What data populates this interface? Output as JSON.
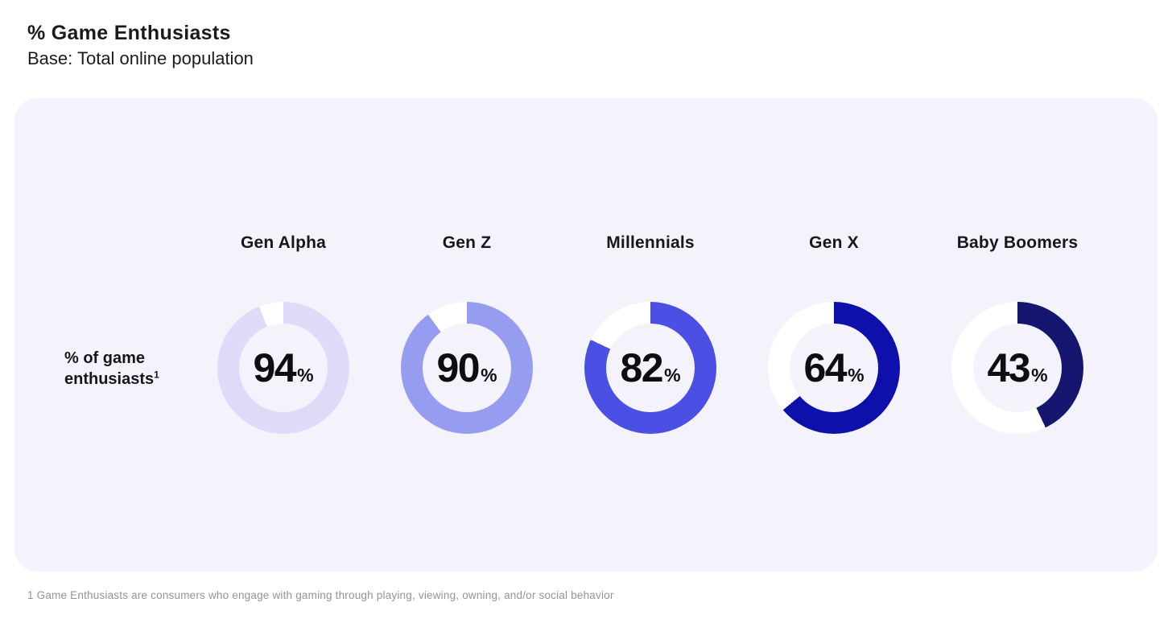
{
  "header": {
    "title": "% Game Enthusiasts",
    "subtitle": "Base: Total online population"
  },
  "chart_data": {
    "type": "donut",
    "title": "% Game Enthusiasts",
    "subtitle": "Base: Total online population",
    "row_label": "% of game enthusiasts",
    "row_label_superscript": "1",
    "categories": [
      "Gen Alpha",
      "Gen Z",
      "Millennials",
      "Gen X",
      "Baby Boomers"
    ],
    "values": [
      94,
      90,
      82,
      64,
      43
    ],
    "unit": "%",
    "value_range": [
      0,
      100
    ],
    "colors": [
      "#dddbf8",
      "#969df1",
      "#4b4fe4",
      "#0e10ab",
      "#141670"
    ],
    "track_color": "#ffffff",
    "arc_start": "top",
    "arc_direction": "clockwise",
    "legend": "none"
  },
  "footnote": "1 Game Enthusiasts are consumers who engage with gaming through playing, viewing, owning, and/or social behavior",
  "colors": {
    "card_background": "#f4f3fc",
    "page_background": "#ffffff",
    "text_primary": "#1b1b1d",
    "footnote_text": "#95929d"
  }
}
